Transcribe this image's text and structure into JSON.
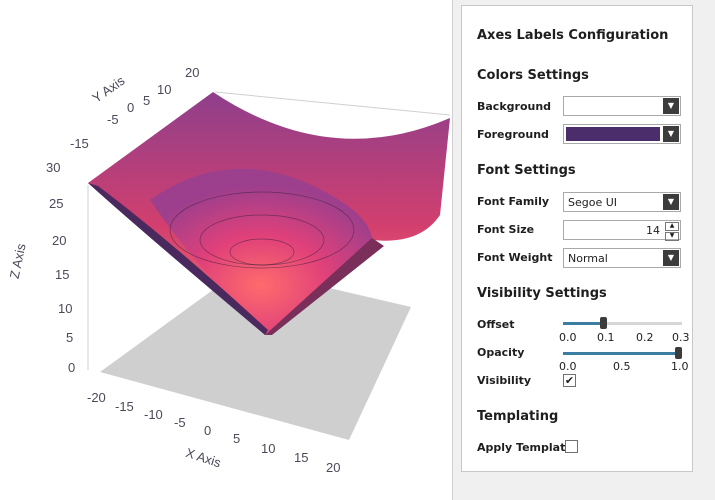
{
  "chart": {
    "x_axis_title": "X Axis",
    "y_axis_title": "Y Axis",
    "z_axis_title": "Z Axis",
    "x_ticks": [
      "-20",
      "-15",
      "-10",
      "-5",
      "0",
      "5",
      "10",
      "15",
      "20"
    ],
    "y_ticks": [
      "-15",
      "-5",
      "0",
      "5",
      "10",
      "20"
    ],
    "z_ticks": [
      "30",
      "25",
      "20",
      "15",
      "10",
      "5",
      "0"
    ]
  },
  "chart_data": {
    "type": "surface",
    "title": "",
    "xlabel": "X Axis",
    "ylabel": "Y Axis",
    "zlabel": "Z Axis",
    "xlim": [
      -20,
      20
    ],
    "ylim": [
      -20,
      20
    ],
    "zlim": [
      0,
      30
    ],
    "surface": "z ≈ sqrt(x^2 + y^2) (cone-shaped, minimum 0 at center, ~28 at corners)",
    "colors": {
      "low": "#ff6f6f",
      "mid": "#c2356e",
      "high": "#6b2f6e",
      "floor": "#cfcfcf"
    }
  },
  "panel": {
    "title": "Axes Labels Configuration",
    "colors_heading": "Colors Settings",
    "background_label": "Background",
    "background_color": "#ffffff",
    "foreground_label": "Foreground",
    "foreground_color": "#4b2d6b",
    "font_heading": "Font Settings",
    "font_family_label": "Font Family",
    "font_family_value": "Segoe UI",
    "font_size_label": "Font Size",
    "font_size_value": "14",
    "font_weight_label": "Font Weight",
    "font_weight_value": "Normal",
    "visibility_heading": "Visibility Settings",
    "offset_label": "Offset",
    "offset_value": 0.1,
    "offset_ticks": [
      "0.0",
      "0.1",
      "0.2",
      "0.3"
    ],
    "opacity_label": "Opacity",
    "opacity_value": 1.0,
    "opacity_ticks": [
      "0.0",
      "0.5",
      "1.0"
    ],
    "visibility_label": "Visibility",
    "visibility_checked": true,
    "templating_heading": "Templating",
    "apply_template_label": "Apply Template",
    "apply_template_checked": false
  }
}
